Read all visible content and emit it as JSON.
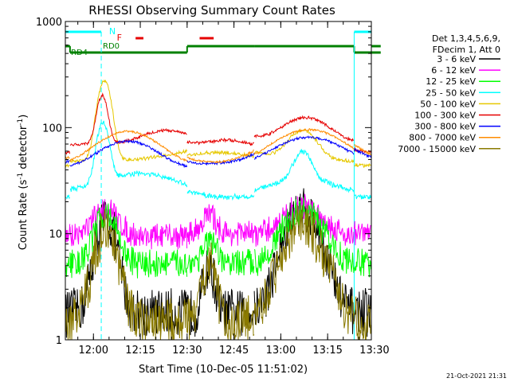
{
  "chart_data": {
    "type": "line",
    "title": "RHESSI Observing Summary Count Rates",
    "xlabel": "Start Time (10-Dec-05 11:51:02)",
    "ylabel": "Count Rate (s⁻¹ detector⁻¹)",
    "ylabel_main": "Count Rate (s",
    "ylabel_sup1": "-1",
    "ylabel_mid": " detector",
    "ylabel_sup2": "-1",
    "ylabel_end": ")",
    "y_scale": "log",
    "ylim": [
      1,
      1000
    ],
    "xlim": [
      "11:51",
      "13:29"
    ],
    "x_ticks": [
      "12:00",
      "12:15",
      "12:30",
      "12:45",
      "13:00",
      "13:15",
      "13:30"
    ],
    "y_ticks": [
      "1",
      "10",
      "100",
      "1000"
    ],
    "legend_header": [
      "Det 1,3,4,5,6,9,",
      "FDecim 1, Att 0"
    ],
    "legend_position": "right",
    "series": [
      {
        "name": "3 - 6 keV",
        "color": "#000000"
      },
      {
        "name": "6 - 12 keV",
        "color": "#ff00ff"
      },
      {
        "name": "12 - 25 keV",
        "color": "#00ff00"
      },
      {
        "name": "25 - 50 keV",
        "color": "#00ffff"
      },
      {
        "name": "50 - 100 keV",
        "color": "#e6c800"
      },
      {
        "name": "100 - 300 keV",
        "color": "#e60000"
      },
      {
        "name": "300 - 800 keV",
        "color": "#0000ff"
      },
      {
        "name": "800 - 7000 keV",
        "color": "#ff8c00"
      },
      {
        "name": "7000 - 15000 keV",
        "color": "#8a7a00"
      }
    ],
    "flags": {
      "N": {
        "label": "N",
        "color": "#00ffff"
      },
      "F": {
        "label": "F",
        "color": "#e60000"
      },
      "RD0": {
        "label": "RD0",
        "color": "#008000"
      },
      "RD4": {
        "label": "RD4",
        "color": "#008000"
      }
    },
    "footer_date": "21-Oct-2021 21:31"
  }
}
